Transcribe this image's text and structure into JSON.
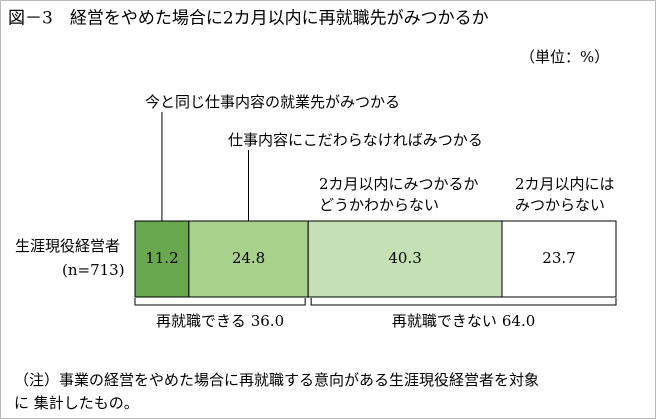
{
  "chart_data": {
    "type": "stacked-bar-100",
    "title": "図－3　経営をやめた場合に2カ月以内に再就職先がみつかるか",
    "unit": "（単位：%）",
    "categories": [
      "生涯現役経営者"
    ],
    "sample_size": "(n=713)",
    "xlim": [
      0,
      100
    ],
    "series": [
      {
        "name": [
          "今と同じ仕事内容の就業先がみつかる"
        ],
        "color": "#6aa84f",
        "values": [
          11.2
        ]
      },
      {
        "name": [
          "仕事内容にこだわらなければみつかる"
        ],
        "color": "#a9d18e",
        "values": [
          24.8
        ]
      },
      {
        "name": [
          "2カ月以内にみつかるか",
          "どうかわからない"
        ],
        "color": "#c5e0b4",
        "values": [
          40.3
        ]
      },
      {
        "name": [
          "2カ月以内には",
          "みつからない"
        ],
        "color": "#ffffff",
        "values": [
          23.7
        ]
      }
    ],
    "groups": [
      {
        "label": "再就職できる",
        "value": 36,
        "value_label": "36.0"
      },
      {
        "label": "再就職できない",
        "value": 64,
        "value_label": "64.0"
      }
    ],
    "note": [
      "（注）事業の経営をやめた場合に再就職する意向がある生涯現役経営者を対象",
      "に 集計したもの。"
    ]
  }
}
